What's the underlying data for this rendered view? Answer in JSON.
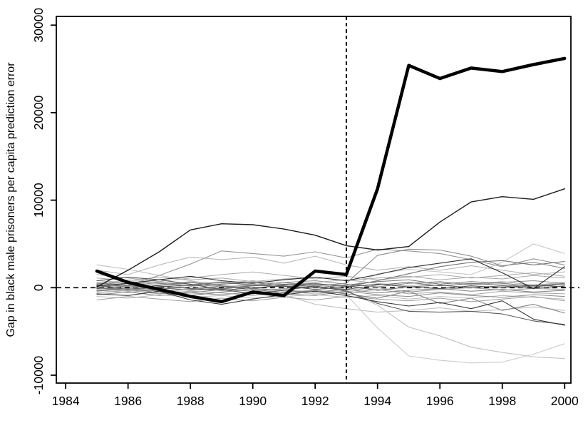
{
  "chart_data": {
    "type": "line",
    "title": "",
    "xlabel": "",
    "ylabel": "Gap in black male prisoners per capita prediction error",
    "x": [
      1985,
      1986,
      1987,
      1988,
      1989,
      1990,
      1991,
      1992,
      1993,
      1994,
      1995,
      1996,
      1997,
      1998,
      1999,
      2000
    ],
    "xticks": [
      1984,
      1986,
      1988,
      1990,
      1992,
      1994,
      1996,
      1998,
      2000
    ],
    "yticks": [
      -10000,
      0,
      10000,
      20000,
      30000
    ],
    "ytick_labels": [
      "-10000",
      "0",
      "10000",
      "20000",
      "30000"
    ],
    "xlim": [
      1983.7,
      2000.2
    ],
    "ylim": [
      -10900,
      31000
    ],
    "grid": false,
    "legend_position": "none",
    "reference_lines": {
      "vertical_dashed_x": 1993,
      "horizontal_dashed_y": 0
    },
    "line_colors": {
      "treated": "#000000",
      "placebo_range": [
        "#1c1c1c",
        "#cbcbcb"
      ]
    },
    "series": [
      {
        "name": "placebo-light-hump-pre",
        "color": "#b8b8b8",
        "width": 1.1,
        "values": [
          2000,
          1500,
          2600,
          3500,
          3200,
          3500,
          2800,
          3600,
          2600,
          2000,
          2400,
          2000,
          2500,
          2000,
          1500,
          1800
        ]
      },
      {
        "name": "placebo-light-drift-down",
        "color": "#c0c0c0",
        "width": 1.1,
        "values": [
          2600,
          2100,
          1400,
          800,
          200,
          -300,
          -800,
          -1900,
          -2400,
          -2800,
          -2600,
          -2300,
          -2700,
          -2500,
          -2200,
          -2600
        ]
      },
      {
        "name": "placebo-light-spike-1999",
        "color": "#c6c6c6",
        "width": 1.1,
        "values": [
          -300,
          -600,
          -200,
          300,
          700,
          400,
          100,
          500,
          -200,
          1600,
          2100,
          1800,
          1500,
          2900,
          5000,
          3900
        ]
      },
      {
        "name": "placebo-light-deep-dive",
        "color": "#cbcbcb",
        "width": 1.1,
        "values": [
          400,
          900,
          600,
          200,
          -300,
          -600,
          -200,
          100,
          -800,
          -4600,
          -7800,
          -8300,
          -8600,
          -8500,
          -7600,
          -6400
        ]
      },
      {
        "name": "placebo-light-slow-dive",
        "color": "#c2c2c2",
        "width": 1.1,
        "values": [
          -200,
          -400,
          100,
          600,
          300,
          -100,
          -400,
          -700,
          -400,
          -2000,
          -4500,
          -5500,
          -6800,
          -7400,
          -7900,
          -8100
        ]
      },
      {
        "name": "placebo-cluster-10",
        "color": "#bdbdbd",
        "width": 1.0,
        "values": [
          -1000,
          -1200,
          -800,
          -1100,
          -900,
          -1200,
          -1000,
          -800,
          -1100,
          -900,
          -1300,
          -1000,
          -1200,
          -900,
          -1100,
          -1300
        ]
      },
      {
        "name": "placebo-cluster-9",
        "color": "#a8a8a8",
        "width": 1.0,
        "values": [
          1100,
          800,
          1200,
          900,
          1100,
          700,
          1000,
          1200,
          800,
          1100,
          1300,
          900,
          1200,
          1000,
          1400,
          1100
        ]
      },
      {
        "name": "placebo-cluster-5",
        "color": "#b0b0b0",
        "width": 1.0,
        "values": [
          800,
          600,
          300,
          700,
          500,
          800,
          400,
          600,
          900,
          500,
          200,
          600,
          400,
          700,
          300,
          600
        ]
      },
      {
        "name": "placebo-mid-band-up",
        "color": "#ababab",
        "width": 1.0,
        "values": [
          1500,
          1100,
          700,
          1100,
          1500,
          1800,
          1400,
          1000,
          1300,
          900,
          1200,
          1500,
          1100,
          1400,
          1700,
          1300
        ]
      },
      {
        "name": "placebo-mid-band-down",
        "color": "#9e9e9e",
        "width": 1.0,
        "values": [
          -1400,
          -1000,
          -1300,
          -1600,
          -1200,
          -1500,
          -1100,
          -1400,
          -1000,
          -1300,
          -1500,
          -1200,
          -1600,
          -1300,
          -1000,
          -1500
        ]
      },
      {
        "name": "placebo-cluster-4",
        "color": "#a3a3a3",
        "width": 1.0,
        "values": [
          -600,
          -300,
          -700,
          -400,
          -600,
          -900,
          -500,
          -300,
          -600,
          -200,
          -700,
          -500,
          -800,
          -400,
          -600,
          -700
        ]
      },
      {
        "name": "placebo-gray-4000-level",
        "color": "#969696",
        "width": 1.1,
        "values": [
          600,
          300,
          1400,
          2700,
          4200,
          3900,
          3600,
          4100,
          3400,
          4400,
          4200,
          3900,
          3200,
          2400,
          3300,
          2600
        ]
      },
      {
        "name": "placebo-cluster-12",
        "color": "#989898",
        "width": 1.0,
        "values": [
          0,
          -400,
          -200,
          100,
          -200,
          -400,
          -100,
          100,
          -300,
          0,
          -500,
          -200,
          0,
          -300,
          -100,
          -200
        ]
      },
      {
        "name": "placebo-cluster-3",
        "color": "#909090",
        "width": 1.0,
        "values": [
          500,
          200,
          600,
          400,
          100,
          300,
          600,
          800,
          400,
          100,
          500,
          700,
          300,
          600,
          800,
          500
        ]
      },
      {
        "name": "placebo-gray-arc-post",
        "color": "#8c8c8c",
        "width": 1.1,
        "values": [
          300,
          100,
          -300,
          -600,
          -200,
          300,
          600,
          200,
          500,
          3700,
          4400,
          4300,
          3600,
          2500,
          2900,
          2200
        ]
      },
      {
        "name": "placebo-cluster-8",
        "color": "#8a8a8a",
        "width": 1.0,
        "values": [
          -800,
          -500,
          -900,
          -600,
          -800,
          -500,
          -700,
          -900,
          -400,
          -800,
          -1000,
          -600,
          -900,
          -1100,
          -800,
          -1000
        ]
      },
      {
        "name": "placebo-med-fan-down",
        "color": "#868686",
        "width": 1.1,
        "values": [
          -400,
          -100,
          -600,
          -900,
          -500,
          -200,
          -600,
          -300,
          -700,
          -1200,
          -400,
          -1800,
          -1200,
          -2600,
          -1900,
          -2900
        ]
      },
      {
        "name": "placebo-cluster-2",
        "color": "#7d7d7d",
        "width": 1.0,
        "values": [
          -300,
          -100,
          -400,
          -200,
          100,
          -100,
          -300,
          -500,
          -200,
          -600,
          -300,
          -100,
          -400,
          -200,
          -500,
          -300
        ]
      },
      {
        "name": "placebo-cluster-11",
        "color": "#757575",
        "width": 1.0,
        "values": [
          400,
          700,
          500,
          200,
          400,
          600,
          200,
          0,
          300,
          700,
          900,
          400,
          700,
          500,
          200,
          500
        ]
      },
      {
        "name": "placebo-med-fan-up",
        "color": "#747474",
        "width": 1.1,
        "values": [
          0,
          -200,
          300,
          600,
          200,
          -100,
          300,
          500,
          100,
          800,
          1600,
          2400,
          2900,
          3100,
          2600,
          3000
        ]
      },
      {
        "name": "placebo-cluster-1",
        "color": "#6b6b6b",
        "width": 1.0,
        "values": [
          100,
          300,
          0,
          -300,
          -100,
          200,
          400,
          100,
          -200,
          300,
          600,
          200,
          500,
          300,
          100,
          400
        ]
      },
      {
        "name": "placebo-cluster-7",
        "color": "#616161",
        "width": 1.0,
        "values": [
          300,
          -200,
          100,
          300,
          600,
          300,
          100,
          400,
          200,
          -300,
          100,
          300,
          0,
          200,
          -100,
          200
        ]
      },
      {
        "name": "placebo-med-dive",
        "color": "#5a5a5a",
        "width": 1.1,
        "values": [
          800,
          1200,
          900,
          400,
          -200,
          -700,
          -300,
          200,
          -400,
          -1800,
          -2700,
          -2800,
          -2700,
          -3000,
          -3800,
          -4200
        ]
      },
      {
        "name": "placebo-cluster-6",
        "color": "#4f4f4f",
        "width": 1.0,
        "values": [
          -100,
          100,
          200,
          -100,
          -300,
          0,
          200,
          -200,
          100,
          400,
          100,
          -100,
          200,
          0,
          300,
          100
        ]
      },
      {
        "name": "placebo-dark-wander",
        "color": "#383838",
        "width": 1.1,
        "values": [
          -700,
          -900,
          -400,
          -1400,
          -1900,
          -1300,
          -800,
          -400,
          -900,
          -1600,
          -2100,
          -1700,
          -2400,
          -1500,
          -3600,
          -4300
        ]
      },
      {
        "name": "placebo-dark-v-1999",
        "color": "#2e2e2e",
        "width": 1.1,
        "values": [
          200,
          500,
          900,
          1300,
          800,
          500,
          900,
          1200,
          800,
          1500,
          2300,
          2800,
          3300,
          1700,
          -100,
          2400
        ]
      },
      {
        "name": "placebo-dark-top",
        "color": "#1c1c1c",
        "width": 1.4,
        "values": [
          100,
          2000,
          4100,
          6600,
          7300,
          7200,
          6700,
          6000,
          4800,
          4300,
          4700,
          7500,
          9800,
          10400,
          10100,
          11300
        ]
      },
      {
        "name": "treated-unit",
        "color": "#000000",
        "width": 4.5,
        "values": [
          1900,
          600,
          -200,
          -1000,
          -1600,
          -500,
          -900,
          1900,
          1500,
          11300,
          25400,
          23900,
          25100,
          24700,
          25500,
          26200
        ]
      }
    ]
  }
}
